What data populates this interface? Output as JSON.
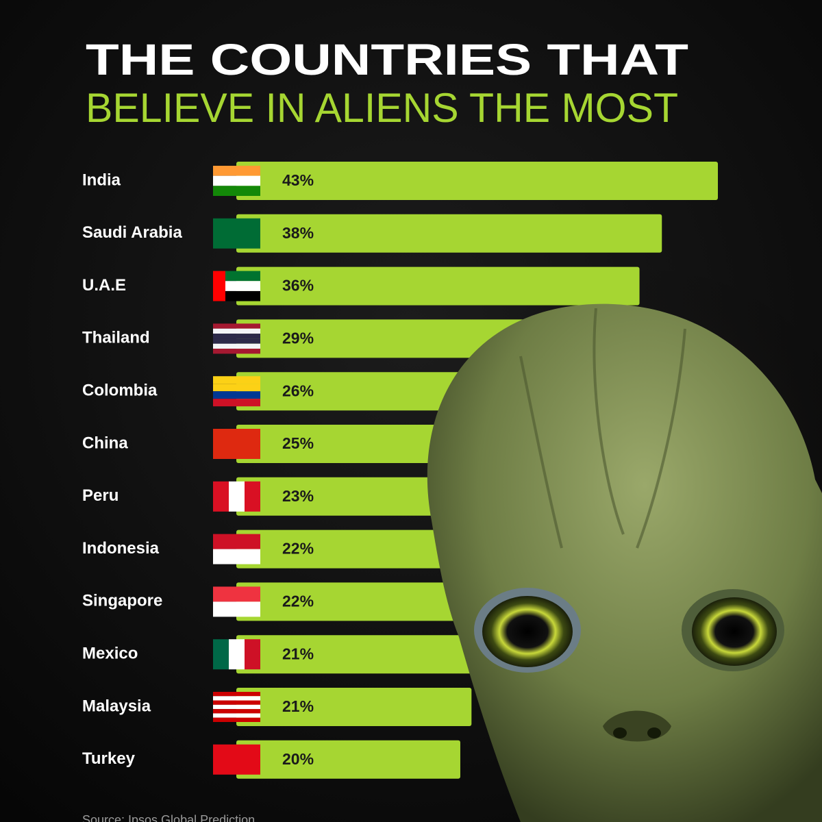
{
  "chart_data": {
    "type": "bar",
    "orientation": "horizontal",
    "title": "THE COUNTRIES THAT",
    "subtitle": "BELIEVE IN ALIENS THE MOST",
    "categories": [
      "India",
      "Saudi Arabia",
      "U.A.E",
      "Thailand",
      "Colombia",
      "China",
      "Peru",
      "Indonesia",
      "Singapore",
      "Mexico",
      "Malaysia",
      "Turkey"
    ],
    "values": [
      43,
      38,
      36,
      29,
      26,
      25,
      23,
      22,
      22,
      21,
      21,
      20
    ],
    "value_labels": [
      "43%",
      "38%",
      "36%",
      "29%",
      "26%",
      "25%",
      "23%",
      "22%",
      "22%",
      "21%",
      "21%",
      "20%"
    ],
    "color": "#a6d632",
    "source": "Source: Ipsos Global Prediction"
  }
}
